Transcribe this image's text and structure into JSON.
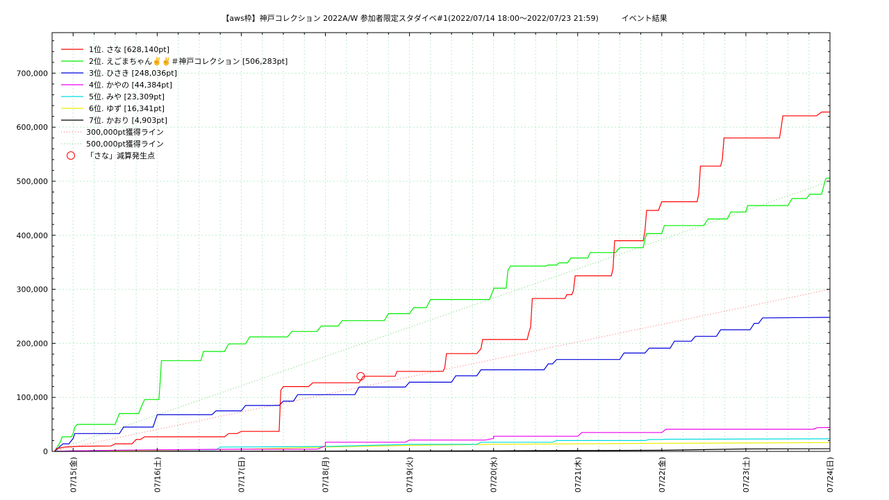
{
  "chart_data": {
    "type": "line",
    "title": "【aws枠】神戸コレクション 2022A/W 参加者限定スタダイベ#1(2022/07/14 18:00〜2022/07/23 21:59)　　　イベント結果",
    "xlabel": "",
    "ylabel": "",
    "x_ticks": [
      "07/15(金)",
      "07/16(土)",
      "07/17(日)",
      "07/18(月)",
      "07/19(火)",
      "07/20(水)",
      "07/21(木)",
      "07/22(金)",
      "07/23(土)",
      "07/24(日)"
    ],
    "x_range_days": [
      -0.25,
      9.0
    ],
    "y_ticks": [
      "0",
      "100,000",
      "200,000",
      "300,000",
      "400,000",
      "500,000",
      "600,000",
      "700,000"
    ],
    "ylim": [
      0,
      775000
    ],
    "grid": true,
    "legend_position": "top-left",
    "series": [
      {
        "name": "1位. さな [628,140pt]",
        "color": "#ff0000",
        "points": [
          [
            -0.22,
            0
          ],
          [
            -0.2,
            5000
          ],
          [
            -0.1,
            8000
          ],
          [
            0,
            9000
          ],
          [
            0.1,
            9500
          ],
          [
            0.45,
            10000
          ],
          [
            0.5,
            14000
          ],
          [
            0.7,
            14000
          ],
          [
            0.75,
            22000
          ],
          [
            0.8,
            22000
          ],
          [
            0.85,
            27000
          ],
          [
            1.8,
            27000
          ],
          [
            1.85,
            33000
          ],
          [
            1.95,
            33000
          ],
          [
            2,
            37000
          ],
          [
            2.45,
            37000
          ],
          [
            2.47,
            113000
          ],
          [
            2.5,
            120000
          ],
          [
            2.8,
            120000
          ],
          [
            2.85,
            127000
          ],
          [
            3.4,
            127000
          ],
          [
            3.45,
            139000
          ],
          [
            3.6,
            139000
          ],
          [
            3.65,
            139000
          ],
          [
            3.83,
            139000
          ],
          [
            3.85,
            148000
          ],
          [
            4.4,
            148000
          ],
          [
            4.42,
            155000
          ],
          [
            4.44,
            181000
          ],
          [
            4.8,
            181000
          ],
          [
            4.85,
            190000
          ],
          [
            4.87,
            207000
          ],
          [
            5.4,
            207000
          ],
          [
            5.42,
            220000
          ],
          [
            5.44,
            230000
          ],
          [
            5.46,
            283000
          ],
          [
            5.85,
            283000
          ],
          [
            5.87,
            290000
          ],
          [
            5.93,
            290000
          ],
          [
            5.95,
            298000
          ],
          [
            5.97,
            325000
          ],
          [
            6.4,
            325000
          ],
          [
            6.42,
            338000
          ],
          [
            6.44,
            390000
          ],
          [
            6.78,
            390000
          ],
          [
            6.8,
            408000
          ],
          [
            6.82,
            446000
          ],
          [
            6.96,
            446000
          ],
          [
            7,
            462000
          ],
          [
            7.42,
            462000
          ],
          [
            7.44,
            477000
          ],
          [
            7.46,
            528000
          ],
          [
            7.7,
            528000
          ],
          [
            7.72,
            540000
          ],
          [
            7.74,
            580000
          ],
          [
            8.4,
            580000
          ],
          [
            8.42,
            600000
          ],
          [
            8.44,
            621000
          ],
          [
            8.84,
            621000
          ],
          [
            8.9,
            628000
          ],
          [
            9,
            628140
          ]
        ]
      },
      {
        "name": "2位. えごまちゃん✌️✌️＃神戸コレクション [506,283pt]",
        "color": "#00ee00",
        "points": [
          [
            -0.22,
            0
          ],
          [
            -0.15,
            18000
          ],
          [
            -0.13,
            27000
          ],
          [
            -0.02,
            27000
          ],
          [
            0,
            33000
          ],
          [
            0.02,
            45000
          ],
          [
            0.05,
            50000
          ],
          [
            0.5,
            50000
          ],
          [
            0.55,
            70000
          ],
          [
            0.78,
            70000
          ],
          [
            0.82,
            86000
          ],
          [
            0.85,
            96000
          ],
          [
            1.02,
            96000
          ],
          [
            1.04,
            140000
          ],
          [
            1.05,
            168000
          ],
          [
            1.52,
            168000
          ],
          [
            1.55,
            185000
          ],
          [
            1.8,
            185000
          ],
          [
            1.85,
            199000
          ],
          [
            2.05,
            199000
          ],
          [
            2.1,
            212000
          ],
          [
            2.55,
            212000
          ],
          [
            2.6,
            222000
          ],
          [
            2.9,
            222000
          ],
          [
            2.95,
            232000
          ],
          [
            3.15,
            232000
          ],
          [
            3.2,
            242000
          ],
          [
            3.7,
            242000
          ],
          [
            3.75,
            255000
          ],
          [
            4,
            255000
          ],
          [
            4.05,
            266000
          ],
          [
            4.2,
            266000
          ],
          [
            4.25,
            281000
          ],
          [
            4.95,
            281000
          ],
          [
            5,
            300000
          ],
          [
            5,
            302000
          ],
          [
            5.15,
            302000
          ],
          [
            5.17,
            335000
          ],
          [
            5.2,
            343000
          ],
          [
            5.62,
            343000
          ],
          [
            5.65,
            345000
          ],
          [
            5.75,
            345000
          ],
          [
            5.78,
            349000
          ],
          [
            5.88,
            349000
          ],
          [
            5.92,
            358000
          ],
          [
            6.12,
            358000
          ],
          [
            6.15,
            368000
          ],
          [
            6.45,
            368000
          ],
          [
            6.5,
            377000
          ],
          [
            6.78,
            377000
          ],
          [
            6.8,
            393000
          ],
          [
            6.82,
            403000
          ],
          [
            7,
            403000
          ],
          [
            7.03,
            418000
          ],
          [
            7.5,
            418000
          ],
          [
            7.55,
            430000
          ],
          [
            7.78,
            430000
          ],
          [
            7.82,
            443000
          ],
          [
            8,
            443000
          ],
          [
            8.02,
            455000
          ],
          [
            8.5,
            455000
          ],
          [
            8.55,
            468000
          ],
          [
            8.72,
            468000
          ],
          [
            8.76,
            476000
          ],
          [
            8.9,
            476000
          ],
          [
            8.95,
            505000
          ],
          [
            9,
            506283
          ]
        ]
      },
      {
        "name": "3位. ひさき [248,036pt]",
        "color": "#0000dd",
        "points": [
          [
            -0.22,
            0
          ],
          [
            -0.15,
            10000
          ],
          [
            -0.12,
            14000
          ],
          [
            -0.05,
            14000
          ],
          [
            0,
            24000
          ],
          [
            0.02,
            33000
          ],
          [
            0.55,
            33000
          ],
          [
            0.6,
            45000
          ],
          [
            0.95,
            45000
          ],
          [
            1,
            68000
          ],
          [
            1.65,
            68000
          ],
          [
            1.7,
            75000
          ],
          [
            2,
            75000
          ],
          [
            2.05,
            85000
          ],
          [
            2.45,
            85000
          ],
          [
            2.5,
            93000
          ],
          [
            2.62,
            93000
          ],
          [
            2.67,
            105000
          ],
          [
            3.35,
            105000
          ],
          [
            3.4,
            119000
          ],
          [
            3.95,
            119000
          ],
          [
            4,
            128000
          ],
          [
            4.5,
            128000
          ],
          [
            4.55,
            140000
          ],
          [
            4.8,
            140000
          ],
          [
            4.85,
            151000
          ],
          [
            5.6,
            151000
          ],
          [
            5.65,
            162000
          ],
          [
            5.7,
            162000
          ],
          [
            5.75,
            170000
          ],
          [
            6.5,
            170000
          ],
          [
            6.55,
            182000
          ],
          [
            6.8,
            182000
          ],
          [
            6.85,
            191000
          ],
          [
            7.1,
            191000
          ],
          [
            7.15,
            204000
          ],
          [
            7.35,
            204000
          ],
          [
            7.4,
            213000
          ],
          [
            7.65,
            213000
          ],
          [
            7.7,
            225000
          ],
          [
            8.05,
            225000
          ],
          [
            8.1,
            237000
          ],
          [
            8.15,
            237000
          ],
          [
            8.2,
            247000
          ],
          [
            9,
            248036
          ]
        ]
      },
      {
        "name": "4位. かやの [44,384pt]",
        "color": "#ee00ee",
        "points": [
          [
            -0.22,
            0
          ],
          [
            0,
            1000
          ],
          [
            1,
            3000
          ],
          [
            2,
            4000
          ],
          [
            2.9,
            4000
          ],
          [
            3,
            10000
          ],
          [
            3,
            17000
          ],
          [
            3.95,
            17000
          ],
          [
            4,
            21000
          ],
          [
            4.9,
            21000
          ],
          [
            5,
            24000
          ],
          [
            5,
            28000
          ],
          [
            6,
            28000
          ],
          [
            6.05,
            35000
          ],
          [
            7,
            35000
          ],
          [
            7.05,
            41000
          ],
          [
            8.8,
            41000
          ],
          [
            8.85,
            44000
          ],
          [
            9,
            44384
          ]
        ]
      },
      {
        "name": "5位. みや [23,309pt]",
        "color": "#00dddd",
        "points": [
          [
            -0.22,
            0
          ],
          [
            0,
            1000
          ],
          [
            1,
            3000
          ],
          [
            1.7,
            3000
          ],
          [
            1.75,
            8000
          ],
          [
            3,
            9000
          ],
          [
            4,
            13000
          ],
          [
            4.8,
            13000
          ],
          [
            4.85,
            17000
          ],
          [
            5.7,
            17000
          ],
          [
            5.75,
            20000
          ],
          [
            6.8,
            20000
          ],
          [
            6.85,
            22000
          ],
          [
            7,
            22000
          ],
          [
            7.05,
            22500
          ],
          [
            9,
            23309
          ]
        ]
      },
      {
        "name": "6位. ゆず [16,341pt]",
        "color": "#eeee00",
        "points": [
          [
            -0.22,
            0
          ],
          [
            0,
            500
          ],
          [
            1,
            2000
          ],
          [
            2,
            4000
          ],
          [
            3,
            8000
          ],
          [
            4,
            11000
          ],
          [
            5,
            13000
          ],
          [
            6,
            14000
          ],
          [
            7,
            15000
          ],
          [
            8,
            15500
          ],
          [
            9,
            16341
          ]
        ]
      },
      {
        "name": "7位. かおり [4,903pt]",
        "color": "#000000",
        "points": [
          [
            -0.22,
            0
          ],
          [
            1,
            200
          ],
          [
            3,
            500
          ],
          [
            5,
            1000
          ],
          [
            7,
            2000
          ],
          [
            8,
            4500
          ],
          [
            9,
            4903
          ]
        ]
      }
    ],
    "reference_lines": [
      {
        "name": "300,000pt獲得ライン",
        "color": "#ff6666",
        "value": 300000
      },
      {
        "name": "500,000pt獲得ライン",
        "color": "#66cc66",
        "value": 500000
      }
    ],
    "marker": {
      "name": "「さな」減算発生点",
      "color": "#ff0000",
      "x": 3.42,
      "y": 139000
    }
  }
}
